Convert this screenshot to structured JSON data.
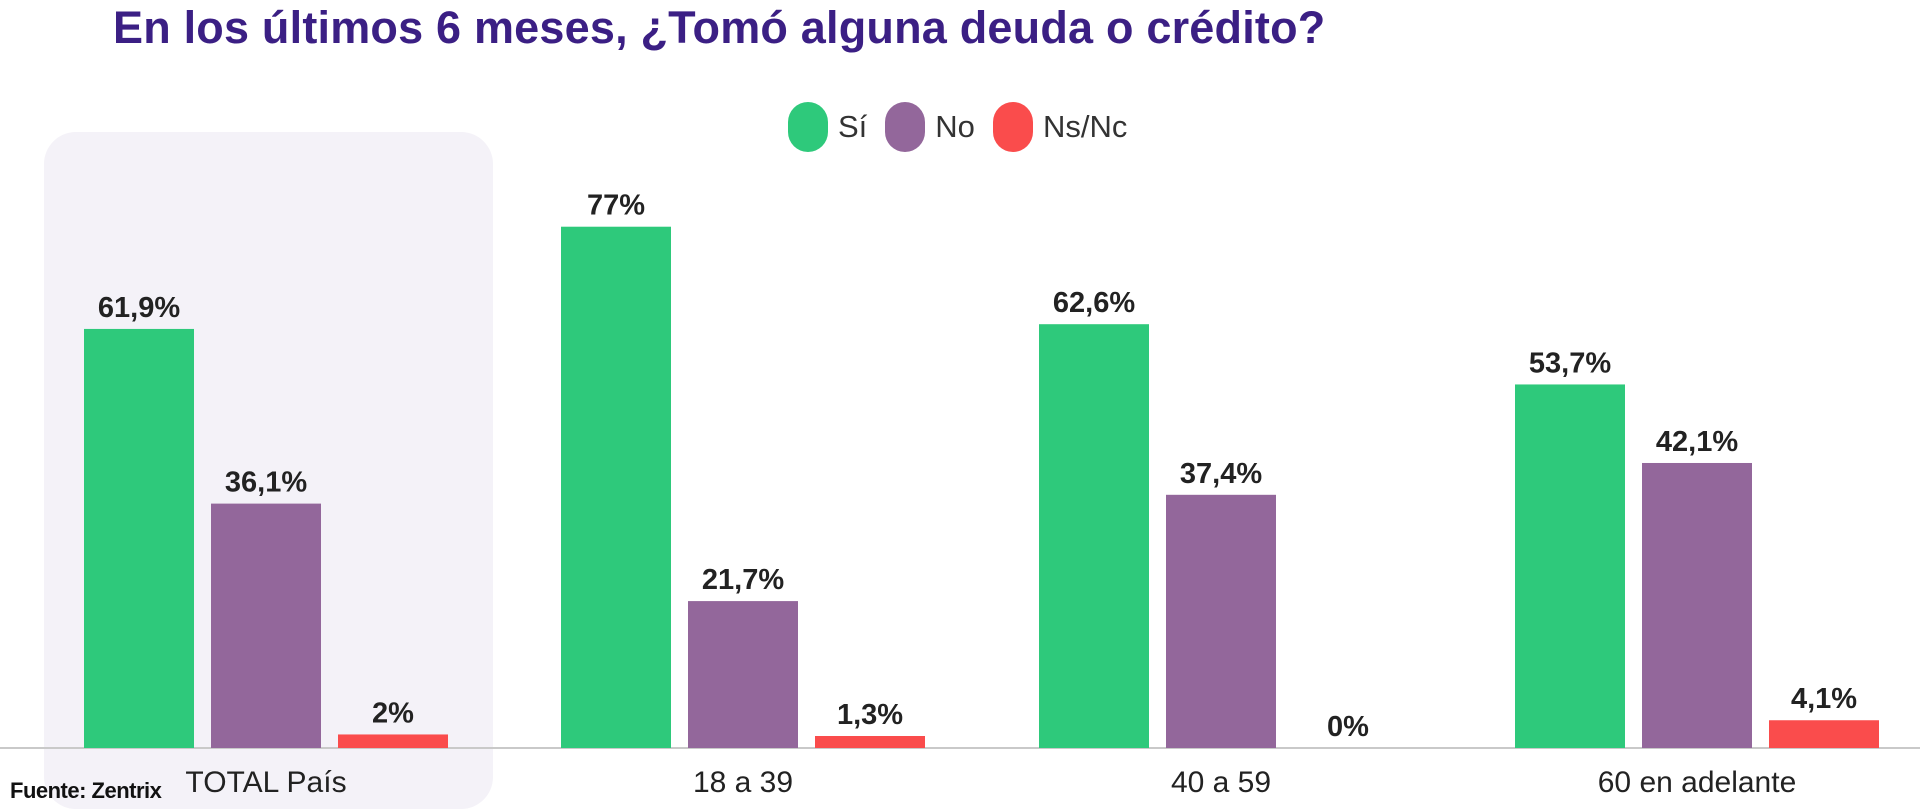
{
  "title": "En los últimos 6 meses, ¿Tomó alguna deuda o crédito?",
  "source": "Fuente: Zentrix",
  "legend": [
    {
      "label": "Sí",
      "color": "#2ec97b"
    },
    {
      "label": "No",
      "color": "#93679b"
    },
    {
      "label": "Ns/Nc",
      "color": "#fa4c4c"
    }
  ],
  "chart_data": {
    "type": "bar",
    "title": "En los últimos 6 meses, ¿Tomó alguna deuda o crédito?",
    "categories": [
      "TOTAL País",
      "18 a 39",
      "40 a 59",
      "60 en adelante"
    ],
    "highlighted_category": "TOTAL País",
    "highlight_color": "#f4f2f8",
    "legend_position": "top-center",
    "grid": false,
    "ylim": [
      0,
      80
    ],
    "series": [
      {
        "name": "Sí",
        "color": "#2ec97b",
        "values": [
          61.9,
          77,
          62.6,
          53.7
        ],
        "labels": [
          "61,9%",
          "77%",
          "62,6%",
          "53,7%"
        ]
      },
      {
        "name": "No",
        "color": "#93679b",
        "values": [
          36.1,
          21.7,
          37.4,
          42.1
        ],
        "labels": [
          "36,1%",
          "21,7%",
          "37,4%",
          "42,1%"
        ]
      },
      {
        "name": "Ns/Nc",
        "color": "#fa4c4c",
        "values": [
          2,
          1.3,
          0,
          4.1
        ],
        "labels": [
          "2%",
          "1,3%",
          "0%",
          "4,1%"
        ]
      }
    ]
  }
}
